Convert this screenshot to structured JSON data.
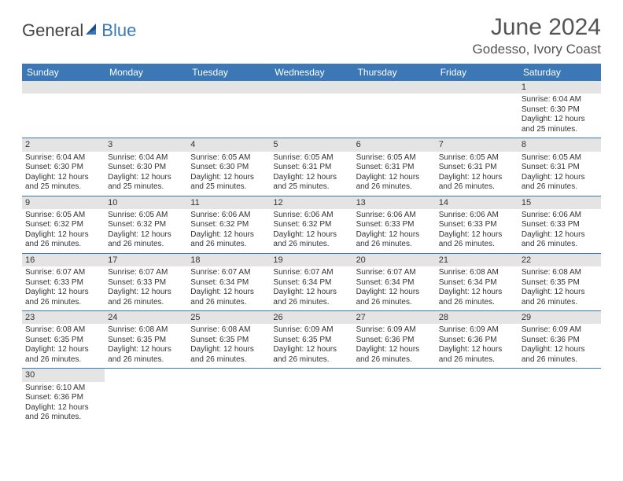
{
  "logo": {
    "text1": "General",
    "text2": "Blue"
  },
  "title": "June 2024",
  "subtitle": "Godesso, Ivory Coast",
  "colors": {
    "header_bg": "#3b78b5",
    "header_fg": "#ffffff",
    "daynum_bg": "#e4e4e4",
    "border": "#3b78b5",
    "logo_gray": "#444444",
    "logo_blue": "#3b78b5",
    "text": "#333333",
    "title_color": "#555555"
  },
  "columns": [
    "Sunday",
    "Monday",
    "Tuesday",
    "Wednesday",
    "Thursday",
    "Friday",
    "Saturday"
  ],
  "weeks": [
    [
      null,
      null,
      null,
      null,
      null,
      null,
      {
        "n": "1",
        "sr": "Sunrise: 6:04 AM",
        "ss": "Sunset: 6:30 PM",
        "dl": "Daylight: 12 hours and 25 minutes."
      }
    ],
    [
      {
        "n": "2",
        "sr": "Sunrise: 6:04 AM",
        "ss": "Sunset: 6:30 PM",
        "dl": "Daylight: 12 hours and 25 minutes."
      },
      {
        "n": "3",
        "sr": "Sunrise: 6:04 AM",
        "ss": "Sunset: 6:30 PM",
        "dl": "Daylight: 12 hours and 25 minutes."
      },
      {
        "n": "4",
        "sr": "Sunrise: 6:05 AM",
        "ss": "Sunset: 6:30 PM",
        "dl": "Daylight: 12 hours and 25 minutes."
      },
      {
        "n": "5",
        "sr": "Sunrise: 6:05 AM",
        "ss": "Sunset: 6:31 PM",
        "dl": "Daylight: 12 hours and 25 minutes."
      },
      {
        "n": "6",
        "sr": "Sunrise: 6:05 AM",
        "ss": "Sunset: 6:31 PM",
        "dl": "Daylight: 12 hours and 26 minutes."
      },
      {
        "n": "7",
        "sr": "Sunrise: 6:05 AM",
        "ss": "Sunset: 6:31 PM",
        "dl": "Daylight: 12 hours and 26 minutes."
      },
      {
        "n": "8",
        "sr": "Sunrise: 6:05 AM",
        "ss": "Sunset: 6:31 PM",
        "dl": "Daylight: 12 hours and 26 minutes."
      }
    ],
    [
      {
        "n": "9",
        "sr": "Sunrise: 6:05 AM",
        "ss": "Sunset: 6:32 PM",
        "dl": "Daylight: 12 hours and 26 minutes."
      },
      {
        "n": "10",
        "sr": "Sunrise: 6:05 AM",
        "ss": "Sunset: 6:32 PM",
        "dl": "Daylight: 12 hours and 26 minutes."
      },
      {
        "n": "11",
        "sr": "Sunrise: 6:06 AM",
        "ss": "Sunset: 6:32 PM",
        "dl": "Daylight: 12 hours and 26 minutes."
      },
      {
        "n": "12",
        "sr": "Sunrise: 6:06 AM",
        "ss": "Sunset: 6:32 PM",
        "dl": "Daylight: 12 hours and 26 minutes."
      },
      {
        "n": "13",
        "sr": "Sunrise: 6:06 AM",
        "ss": "Sunset: 6:33 PM",
        "dl": "Daylight: 12 hours and 26 minutes."
      },
      {
        "n": "14",
        "sr": "Sunrise: 6:06 AM",
        "ss": "Sunset: 6:33 PM",
        "dl": "Daylight: 12 hours and 26 minutes."
      },
      {
        "n": "15",
        "sr": "Sunrise: 6:06 AM",
        "ss": "Sunset: 6:33 PM",
        "dl": "Daylight: 12 hours and 26 minutes."
      }
    ],
    [
      {
        "n": "16",
        "sr": "Sunrise: 6:07 AM",
        "ss": "Sunset: 6:33 PM",
        "dl": "Daylight: 12 hours and 26 minutes."
      },
      {
        "n": "17",
        "sr": "Sunrise: 6:07 AM",
        "ss": "Sunset: 6:33 PM",
        "dl": "Daylight: 12 hours and 26 minutes."
      },
      {
        "n": "18",
        "sr": "Sunrise: 6:07 AM",
        "ss": "Sunset: 6:34 PM",
        "dl": "Daylight: 12 hours and 26 minutes."
      },
      {
        "n": "19",
        "sr": "Sunrise: 6:07 AM",
        "ss": "Sunset: 6:34 PM",
        "dl": "Daylight: 12 hours and 26 minutes."
      },
      {
        "n": "20",
        "sr": "Sunrise: 6:07 AM",
        "ss": "Sunset: 6:34 PM",
        "dl": "Daylight: 12 hours and 26 minutes."
      },
      {
        "n": "21",
        "sr": "Sunrise: 6:08 AM",
        "ss": "Sunset: 6:34 PM",
        "dl": "Daylight: 12 hours and 26 minutes."
      },
      {
        "n": "22",
        "sr": "Sunrise: 6:08 AM",
        "ss": "Sunset: 6:35 PM",
        "dl": "Daylight: 12 hours and 26 minutes."
      }
    ],
    [
      {
        "n": "23",
        "sr": "Sunrise: 6:08 AM",
        "ss": "Sunset: 6:35 PM",
        "dl": "Daylight: 12 hours and 26 minutes."
      },
      {
        "n": "24",
        "sr": "Sunrise: 6:08 AM",
        "ss": "Sunset: 6:35 PM",
        "dl": "Daylight: 12 hours and 26 minutes."
      },
      {
        "n": "25",
        "sr": "Sunrise: 6:08 AM",
        "ss": "Sunset: 6:35 PM",
        "dl": "Daylight: 12 hours and 26 minutes."
      },
      {
        "n": "26",
        "sr": "Sunrise: 6:09 AM",
        "ss": "Sunset: 6:35 PM",
        "dl": "Daylight: 12 hours and 26 minutes."
      },
      {
        "n": "27",
        "sr": "Sunrise: 6:09 AM",
        "ss": "Sunset: 6:36 PM",
        "dl": "Daylight: 12 hours and 26 minutes."
      },
      {
        "n": "28",
        "sr": "Sunrise: 6:09 AM",
        "ss": "Sunset: 6:36 PM",
        "dl": "Daylight: 12 hours and 26 minutes."
      },
      {
        "n": "29",
        "sr": "Sunrise: 6:09 AM",
        "ss": "Sunset: 6:36 PM",
        "dl": "Daylight: 12 hours and 26 minutes."
      }
    ],
    [
      {
        "n": "30",
        "sr": "Sunrise: 6:10 AM",
        "ss": "Sunset: 6:36 PM",
        "dl": "Daylight: 12 hours and 26 minutes."
      },
      null,
      null,
      null,
      null,
      null,
      null
    ]
  ]
}
